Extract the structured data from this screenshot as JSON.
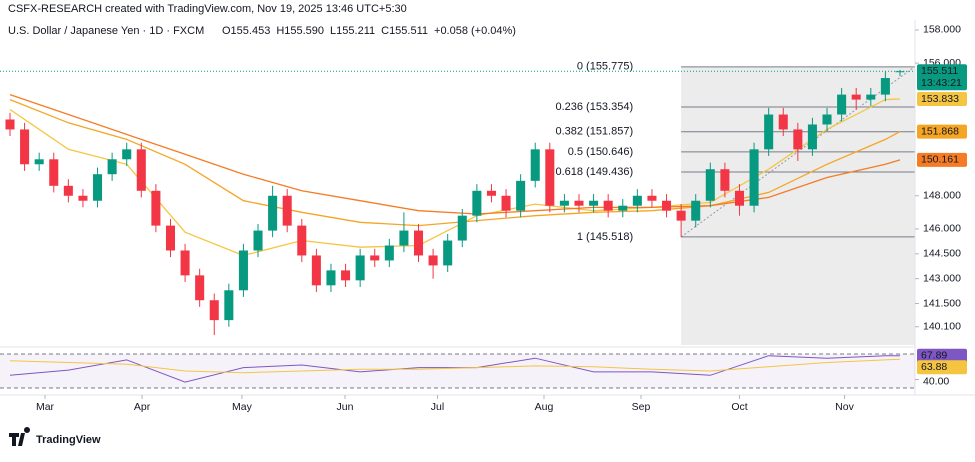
{
  "header": {
    "credit": "CSFX-RESEARCH created with TradingView.com, Nov 19, 2025 13:46 UTC+5:30",
    "symbol": "U.S. Dollar / Japanese Yen · 1D · FXCM",
    "ohlc": [
      "O155.453",
      "H155.590",
      "L155.211",
      "C155.511",
      "+0.058 (+0.04%)"
    ]
  },
  "chart_data": {
    "type": "candlestick",
    "up_color": "#089981",
    "down_color": "#f23645",
    "xlim": [
      -0.685,
      62.03
    ],
    "xticks": [
      {
        "value": 2.4,
        "label": "Mar"
      },
      {
        "value": 9.05,
        "label": "Apr"
      },
      {
        "value": 15.9,
        "label": "May"
      },
      {
        "value": 22.96,
        "label": "Jun"
      },
      {
        "value": 29.3,
        "label": "Jul"
      },
      {
        "value": 36.6,
        "label": "Aug"
      },
      {
        "value": 43.25,
        "label": "Sep"
      },
      {
        "value": 50.0,
        "label": "Oct"
      },
      {
        "value": 57.2,
        "label": "Nov"
      }
    ],
    "ylim": [
      139.0,
      158.6
    ],
    "yticks": [
      {
        "value": 158,
        "label": "158.000"
      },
      {
        "value": 156,
        "label": "156.000"
      },
      {
        "value": 148,
        "label": "148.000"
      },
      {
        "value": 146,
        "label": "146.000"
      },
      {
        "value": 144.5,
        "label": "144.500"
      },
      {
        "value": 143,
        "label": "143.000"
      },
      {
        "value": 141.5,
        "label": "141.500"
      },
      {
        "value": 140.1,
        "label": "140.100"
      }
    ],
    "open": [
      152.6,
      152.0,
      149.9,
      150.2,
      148.6,
      148.0,
      147.7,
      149.3,
      150.2,
      150.8,
      148.3,
      146.2,
      144.7,
      143.2,
      141.7,
      140.5,
      142.3,
      144.7,
      145.9,
      148.0,
      146.2,
      144.4,
      142.6,
      143.5,
      142.9,
      144.4,
      144.1,
      145.0,
      145.9,
      144.4,
      143.8,
      145.3,
      146.8,
      148.3,
      148.0,
      147.1,
      148.9,
      150.8,
      147.4,
      147.7,
      147.4,
      147.7,
      147.1,
      147.4,
      148.0,
      147.7,
      147.1,
      146.5,
      147.7,
      149.6,
      148.3,
      147.4,
      150.8,
      152.9,
      152.0,
      150.8,
      152.3,
      152.9,
      154.1,
      153.8,
      154.1,
      155.453
    ],
    "high": [
      153.0,
      152.4,
      150.6,
      150.6,
      149.0,
      148.4,
      149.7,
      150.6,
      151.2,
      151.2,
      148.7,
      146.6,
      145.1,
      143.6,
      142.1,
      142.7,
      145.1,
      146.3,
      148.6,
      148.4,
      146.6,
      144.8,
      143.9,
      143.9,
      144.8,
      144.8,
      145.4,
      147.0,
      146.3,
      144.8,
      145.7,
      147.2,
      148.7,
      148.7,
      148.4,
      149.3,
      151.2,
      151.2,
      148.1,
      148.1,
      148.1,
      148.1,
      147.8,
      148.4,
      148.4,
      148.1,
      147.5,
      148.1,
      150.0,
      150.0,
      148.7,
      151.2,
      153.3,
      153.3,
      152.4,
      152.7,
      153.3,
      154.5,
      154.5,
      154.5,
      155.5,
      155.59
    ],
    "low": [
      151.6,
      149.5,
      149.5,
      148.2,
      147.6,
      147.3,
      147.3,
      148.9,
      149.8,
      147.9,
      145.8,
      144.3,
      142.8,
      141.3,
      139.6,
      140.1,
      141.9,
      144.3,
      145.5,
      145.8,
      144.0,
      142.2,
      142.2,
      142.5,
      142.5,
      143.7,
      143.7,
      144.6,
      144.0,
      143.0,
      143.4,
      144.9,
      146.4,
      147.6,
      146.7,
      146.7,
      148.5,
      147.0,
      147.0,
      147.0,
      147.0,
      146.7,
      146.7,
      147.0,
      147.3,
      146.7,
      145.5,
      146.1,
      147.3,
      147.9,
      146.8,
      147.0,
      150.4,
      151.6,
      150.1,
      150.4,
      151.9,
      152.5,
      153.2,
      153.4,
      153.7,
      155.211
    ],
    "close": [
      152.0,
      149.9,
      150.2,
      148.6,
      148.0,
      147.7,
      149.3,
      150.2,
      150.8,
      148.3,
      146.2,
      144.7,
      143.2,
      141.7,
      140.5,
      142.3,
      144.7,
      145.9,
      148.0,
      146.2,
      144.4,
      142.6,
      143.5,
      142.9,
      144.4,
      144.1,
      145.0,
      145.9,
      144.4,
      143.8,
      145.3,
      146.8,
      148.3,
      148.0,
      147.1,
      148.9,
      150.8,
      147.4,
      147.7,
      147.4,
      147.7,
      147.1,
      147.4,
      148.0,
      147.7,
      147.1,
      146.5,
      147.7,
      149.6,
      148.3,
      147.4,
      150.8,
      152.9,
      152.0,
      150.8,
      152.3,
      152.9,
      154.1,
      153.8,
      154.1,
      155.1,
      155.511
    ],
    "countdown": "13:43:21",
    "price_line_color": "#089981",
    "moving_averages": [
      {
        "color": "#f5c542",
        "x": [
          0,
          4,
          8,
          12,
          16,
          20,
          24,
          28,
          32,
          36,
          40,
          44,
          48,
          52,
          56,
          60,
          61
        ],
        "values": [
          153.2,
          150.8,
          149.9,
          145.8,
          144.4,
          145.3,
          144.9,
          145.0,
          146.8,
          147.5,
          147.1,
          147.3,
          147.6,
          149.6,
          152.0,
          153.8,
          153.833
        ]
      },
      {
        "color": "#f5a524",
        "x": [
          0,
          4,
          8,
          12,
          16,
          20,
          24,
          28,
          32,
          36,
          40,
          44,
          48,
          52,
          56,
          60,
          61
        ],
        "values": [
          153.8,
          152.4,
          151.4,
          149.9,
          147.7,
          147.0,
          146.4,
          146.2,
          146.5,
          146.8,
          147.0,
          147.1,
          147.4,
          148.2,
          149.9,
          151.4,
          151.868
        ]
      },
      {
        "color": "#f57c24",
        "x": [
          0,
          4,
          8,
          12,
          16,
          20,
          24,
          28,
          32,
          36,
          40,
          44,
          48,
          52,
          56,
          60,
          61
        ],
        "values": [
          154.1,
          152.9,
          151.7,
          150.5,
          149.3,
          148.3,
          147.7,
          147.1,
          146.9,
          147.1,
          147.3,
          147.3,
          147.4,
          147.9,
          149.1,
          149.9,
          150.161
        ]
      }
    ],
    "fibonacci": {
      "xlim": [
        46,
        62
      ],
      "color": "#787b86",
      "levels": [
        {
          "value": 155.775,
          "label": "0 (155.775)"
        },
        {
          "value": 153.354,
          "label": "0.236 (153.354)"
        },
        {
          "value": 151.857,
          "label": "0.382 (151.857)"
        },
        {
          "value": 150.646,
          "label": "0.5 (150.646)"
        },
        {
          "value": 149.436,
          "label": "0.618 (149.436)"
        },
        {
          "value": 145.518,
          "label": "1 (145.518)"
        }
      ]
    },
    "rsi": {
      "type": "line",
      "ylim": [
        25.3,
        74.7
      ],
      "yticks": [
        {
          "value": 40,
          "label": "40.00"
        }
      ],
      "bands": [
        30,
        70
      ],
      "series": [
        {
          "color": "#7e57c2",
          "x": [
            0,
            4,
            8,
            12,
            16,
            20,
            24,
            28,
            32,
            36,
            40,
            44,
            48,
            52,
            56,
            60,
            61
          ],
          "values": [
            45,
            51,
            63,
            37,
            54,
            57,
            49,
            54,
            54,
            65,
            49,
            49,
            45,
            68,
            65,
            68,
            67.89
          ]
        },
        {
          "color": "#f5c542",
          "x": [
            0,
            4,
            8,
            12,
            16,
            20,
            24,
            28,
            32,
            36,
            40,
            44,
            48,
            52,
            56,
            60,
            61
          ],
          "values": [
            62,
            60,
            58,
            50,
            48,
            50,
            52,
            52,
            54,
            56,
            55,
            52,
            50,
            55,
            60,
            63,
            63.88
          ]
        }
      ]
    }
  },
  "footer": {
    "brand": "TradingView"
  }
}
